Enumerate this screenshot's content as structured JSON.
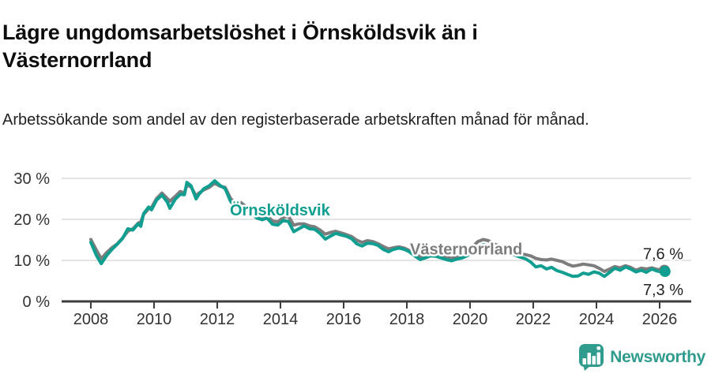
{
  "header": {
    "title": "Lägre ungdomsarbetslöshet i Örnsköldsvik än i Västernorrland",
    "subtitle": "Arbetssökande som andel av den registerbaserade arbetskraften månad för månad."
  },
  "footer": {
    "brand_name": "Newsworthy"
  },
  "colors": {
    "ornskoldsvik": "#0f9e8f",
    "vasternorrland": "#7d7d7d",
    "grid": "#dcdcdc",
    "axis": "#3d3d3d",
    "tick_text": "#333333",
    "value_text": "#222222",
    "brand": "#2f9c8e"
  },
  "chart_data": {
    "type": "line",
    "title": "Lägre ungdomsarbetslöshet i Örnsköldsvik än i Västernorrland",
    "subtitle": "Arbetssökande som andel av den registerbaserade arbetskraften månad för månad.",
    "xlabel": "",
    "ylabel": "",
    "xlim": [
      2007.1,
      2027.0
    ],
    "ylim": [
      0,
      33
    ],
    "grid": "horizontal",
    "legend_position": "inline-labels",
    "y_ticks": [
      {
        "value": 0,
        "label": "0 %"
      },
      {
        "value": 10,
        "label": "10 %"
      },
      {
        "value": 20,
        "label": "20 %"
      },
      {
        "value": 30,
        "label": "30 %"
      }
    ],
    "x_ticks": [
      {
        "value": 2008,
        "label": "2008"
      },
      {
        "value": 2010,
        "label": "2010"
      },
      {
        "value": 2012,
        "label": "2012"
      },
      {
        "value": 2014,
        "label": "2014"
      },
      {
        "value": 2016,
        "label": "2016"
      },
      {
        "value": 2018,
        "label": "2018"
      },
      {
        "value": 2020,
        "label": "2020"
      },
      {
        "value": 2022,
        "label": "2022"
      },
      {
        "value": 2024,
        "label": "2024"
      },
      {
        "value": 2026,
        "label": "2026"
      }
    ],
    "annotations": [
      {
        "text": "Örnsköldsvik",
        "x": 2012.4,
        "y": 21.0,
        "color_key": "ornskoldsvik"
      },
      {
        "text": "Västernorrland",
        "x": 2018.1,
        "y": 11.4,
        "color_key": "vasternorrland"
      }
    ],
    "series": [
      {
        "name": "Västernorrland",
        "key": "vasternorrland",
        "color_key": "vasternorrland",
        "end_dot": true,
        "end_label": {
          "text": "7,6 %",
          "x": 2026.75,
          "y": 10.3
        },
        "points": [
          [
            2008.0,
            15.1
          ],
          [
            2008.17,
            12.6
          ],
          [
            2008.33,
            10.4
          ],
          [
            2008.5,
            11.9
          ],
          [
            2008.67,
            13.1
          ],
          [
            2008.83,
            14.0
          ],
          [
            2009.0,
            15.4
          ],
          [
            2009.17,
            17.1
          ],
          [
            2009.33,
            17.7
          ],
          [
            2009.5,
            19.1
          ],
          [
            2009.58,
            19.4
          ],
          [
            2009.67,
            21.2
          ],
          [
            2009.83,
            22.6
          ],
          [
            2009.92,
            22.9
          ],
          [
            2010.08,
            25.1
          ],
          [
            2010.25,
            26.4
          ],
          [
            2010.42,
            25.1
          ],
          [
            2010.5,
            24.4
          ],
          [
            2010.67,
            25.6
          ],
          [
            2010.83,
            26.8
          ],
          [
            2010.96,
            26.4
          ],
          [
            2011.04,
            28.4
          ],
          [
            2011.17,
            27.9
          ],
          [
            2011.33,
            25.7
          ],
          [
            2011.42,
            26.4
          ],
          [
            2011.58,
            27.2
          ],
          [
            2011.75,
            27.8
          ],
          [
            2011.92,
            28.8
          ],
          [
            2012.08,
            28.1
          ],
          [
            2012.25,
            27.8
          ],
          [
            2012.42,
            25.1
          ],
          [
            2012.58,
            23.9
          ],
          [
            2012.75,
            24.1
          ],
          [
            2012.92,
            23.0
          ],
          [
            2013.08,
            22.3
          ],
          [
            2013.25,
            21.1
          ],
          [
            2013.42,
            20.6
          ],
          [
            2013.58,
            20.9
          ],
          [
            2013.75,
            19.6
          ],
          [
            2013.92,
            19.4
          ],
          [
            2014.08,
            20.4
          ],
          [
            2014.25,
            20.8
          ],
          [
            2014.42,
            18.6
          ],
          [
            2014.58,
            18.9
          ],
          [
            2014.75,
            18.9
          ],
          [
            2014.92,
            18.4
          ],
          [
            2015.08,
            18.2
          ],
          [
            2015.25,
            17.4
          ],
          [
            2015.42,
            16.4
          ],
          [
            2015.58,
            16.8
          ],
          [
            2015.75,
            17.1
          ],
          [
            2015.92,
            16.7
          ],
          [
            2016.08,
            16.3
          ],
          [
            2016.25,
            15.8
          ],
          [
            2016.42,
            14.9
          ],
          [
            2016.58,
            14.4
          ],
          [
            2016.75,
            14.8
          ],
          [
            2016.92,
            14.6
          ],
          [
            2017.08,
            14.1
          ],
          [
            2017.25,
            13.4
          ],
          [
            2017.42,
            12.8
          ],
          [
            2017.58,
            13.1
          ],
          [
            2017.75,
            13.3
          ],
          [
            2017.92,
            13.0
          ],
          [
            2018.08,
            12.4
          ],
          [
            2018.25,
            11.6
          ],
          [
            2018.42,
            10.9
          ],
          [
            2018.58,
            11.2
          ],
          [
            2018.75,
            11.5
          ],
          [
            2018.92,
            11.4
          ],
          [
            2019.08,
            11.0
          ],
          [
            2019.25,
            10.7
          ],
          [
            2019.42,
            10.5
          ],
          [
            2019.58,
            10.9
          ],
          [
            2019.75,
            11.3
          ],
          [
            2019.92,
            12.1
          ],
          [
            2020.08,
            13.3
          ],
          [
            2020.25,
            14.6
          ],
          [
            2020.42,
            15.1
          ],
          [
            2020.58,
            14.8
          ],
          [
            2020.75,
            14.1
          ],
          [
            2020.92,
            13.5
          ],
          [
            2021.08,
            12.9
          ],
          [
            2021.25,
            12.5
          ],
          [
            2021.42,
            12.1
          ],
          [
            2021.58,
            11.7
          ],
          [
            2021.75,
            11.4
          ],
          [
            2021.92,
            11.1
          ],
          [
            2022.08,
            10.5
          ],
          [
            2022.25,
            10.2
          ],
          [
            2022.42,
            10.1
          ],
          [
            2022.58,
            10.3
          ],
          [
            2022.75,
            10.0
          ],
          [
            2022.92,
            9.7
          ],
          [
            2023.08,
            9.1
          ],
          [
            2023.25,
            8.6
          ],
          [
            2023.42,
            8.8
          ],
          [
            2023.58,
            9.1
          ],
          [
            2023.75,
            8.9
          ],
          [
            2023.92,
            8.7
          ],
          [
            2024.08,
            8.1
          ],
          [
            2024.25,
            7.3
          ],
          [
            2024.42,
            7.9
          ],
          [
            2024.58,
            8.5
          ],
          [
            2024.75,
            8.2
          ],
          [
            2024.92,
            8.7
          ],
          [
            2025.08,
            8.3
          ],
          [
            2025.25,
            7.6
          ],
          [
            2025.42,
            8.1
          ],
          [
            2025.58,
            7.9
          ],
          [
            2025.75,
            8.2
          ],
          [
            2025.92,
            7.8
          ],
          [
            2026.08,
            7.6
          ],
          [
            2026.15,
            7.6
          ]
        ]
      },
      {
        "name": "Örnsköldsvik",
        "key": "ornskoldsvik",
        "color_key": "ornskoldsvik",
        "end_dot": true,
        "end_label": {
          "text": "7,3 %",
          "x": 2026.75,
          "y": 1.5
        },
        "points": [
          [
            2008.0,
            14.4
          ],
          [
            2008.17,
            11.3
          ],
          [
            2008.33,
            9.2
          ],
          [
            2008.5,
            11.2
          ],
          [
            2008.67,
            12.7
          ],
          [
            2008.83,
            13.9
          ],
          [
            2009.0,
            15.3
          ],
          [
            2009.17,
            17.7
          ],
          [
            2009.33,
            17.4
          ],
          [
            2009.5,
            18.9
          ],
          [
            2009.58,
            18.3
          ],
          [
            2009.67,
            21.4
          ],
          [
            2009.83,
            23.0
          ],
          [
            2009.92,
            22.3
          ],
          [
            2010.08,
            24.7
          ],
          [
            2010.25,
            25.9
          ],
          [
            2010.42,
            24.2
          ],
          [
            2010.5,
            22.7
          ],
          [
            2010.67,
            24.9
          ],
          [
            2010.83,
            26.1
          ],
          [
            2010.96,
            26.0
          ],
          [
            2011.04,
            29.0
          ],
          [
            2011.17,
            28.2
          ],
          [
            2011.33,
            25.0
          ],
          [
            2011.42,
            26.1
          ],
          [
            2011.58,
            27.5
          ],
          [
            2011.75,
            28.2
          ],
          [
            2011.92,
            29.4
          ],
          [
            2012.08,
            28.3
          ],
          [
            2012.25,
            27.5
          ],
          [
            2012.42,
            24.4
          ],
          [
            2012.58,
            23.0
          ],
          [
            2012.75,
            23.4
          ],
          [
            2012.92,
            22.4
          ],
          [
            2013.08,
            21.7
          ],
          [
            2013.25,
            20.3
          ],
          [
            2013.42,
            19.9
          ],
          [
            2013.58,
            20.3
          ],
          [
            2013.75,
            18.8
          ],
          [
            2013.92,
            18.6
          ],
          [
            2014.08,
            19.7
          ],
          [
            2014.25,
            19.5
          ],
          [
            2014.42,
            17.0
          ],
          [
            2014.58,
            17.7
          ],
          [
            2014.75,
            18.4
          ],
          [
            2014.92,
            17.7
          ],
          [
            2015.08,
            17.6
          ],
          [
            2015.25,
            16.6
          ],
          [
            2015.42,
            15.2
          ],
          [
            2015.58,
            15.9
          ],
          [
            2015.75,
            16.6
          ],
          [
            2015.92,
            16.2
          ],
          [
            2016.08,
            15.9
          ],
          [
            2016.25,
            15.3
          ],
          [
            2016.42,
            14.0
          ],
          [
            2016.58,
            13.5
          ],
          [
            2016.75,
            14.2
          ],
          [
            2016.92,
            14.1
          ],
          [
            2017.08,
            13.7
          ],
          [
            2017.25,
            12.7
          ],
          [
            2017.42,
            12.1
          ],
          [
            2017.58,
            12.7
          ],
          [
            2017.75,
            13.0
          ],
          [
            2017.92,
            12.7
          ],
          [
            2018.08,
            12.1
          ],
          [
            2018.25,
            11.1
          ],
          [
            2018.42,
            10.2
          ],
          [
            2018.58,
            10.6
          ],
          [
            2018.75,
            11.1
          ],
          [
            2018.92,
            11.0
          ],
          [
            2019.08,
            10.6
          ],
          [
            2019.25,
            10.2
          ],
          [
            2019.42,
            9.9
          ],
          [
            2019.58,
            10.3
          ],
          [
            2019.75,
            10.6
          ],
          [
            2019.92,
            11.2
          ],
          [
            2020.08,
            12.2
          ],
          [
            2020.25,
            13.3
          ],
          [
            2020.42,
            13.8
          ],
          [
            2020.58,
            13.5
          ],
          [
            2020.75,
            12.9
          ],
          [
            2020.92,
            12.4
          ],
          [
            2021.08,
            12.0
          ],
          [
            2021.25,
            11.6
          ],
          [
            2021.42,
            11.3
          ],
          [
            2021.58,
            10.8
          ],
          [
            2021.75,
            10.4
          ],
          [
            2021.92,
            9.6
          ],
          [
            2022.08,
            8.4
          ],
          [
            2022.25,
            8.7
          ],
          [
            2022.42,
            7.9
          ],
          [
            2022.58,
            8.3
          ],
          [
            2022.75,
            7.5
          ],
          [
            2022.92,
            7.1
          ],
          [
            2023.08,
            6.6
          ],
          [
            2023.25,
            6.1
          ],
          [
            2023.42,
            6.2
          ],
          [
            2023.58,
            6.9
          ],
          [
            2023.75,
            6.6
          ],
          [
            2023.92,
            7.2
          ],
          [
            2024.08,
            6.9
          ],
          [
            2024.25,
            6.1
          ],
          [
            2024.42,
            7.1
          ],
          [
            2024.58,
            8.1
          ],
          [
            2024.75,
            7.6
          ],
          [
            2024.92,
            8.4
          ],
          [
            2025.08,
            7.9
          ],
          [
            2025.25,
            7.2
          ],
          [
            2025.42,
            7.6
          ],
          [
            2025.58,
            7.1
          ],
          [
            2025.75,
            7.9
          ],
          [
            2025.92,
            7.4
          ],
          [
            2026.08,
            7.2
          ],
          [
            2026.17,
            7.3
          ]
        ]
      }
    ]
  }
}
